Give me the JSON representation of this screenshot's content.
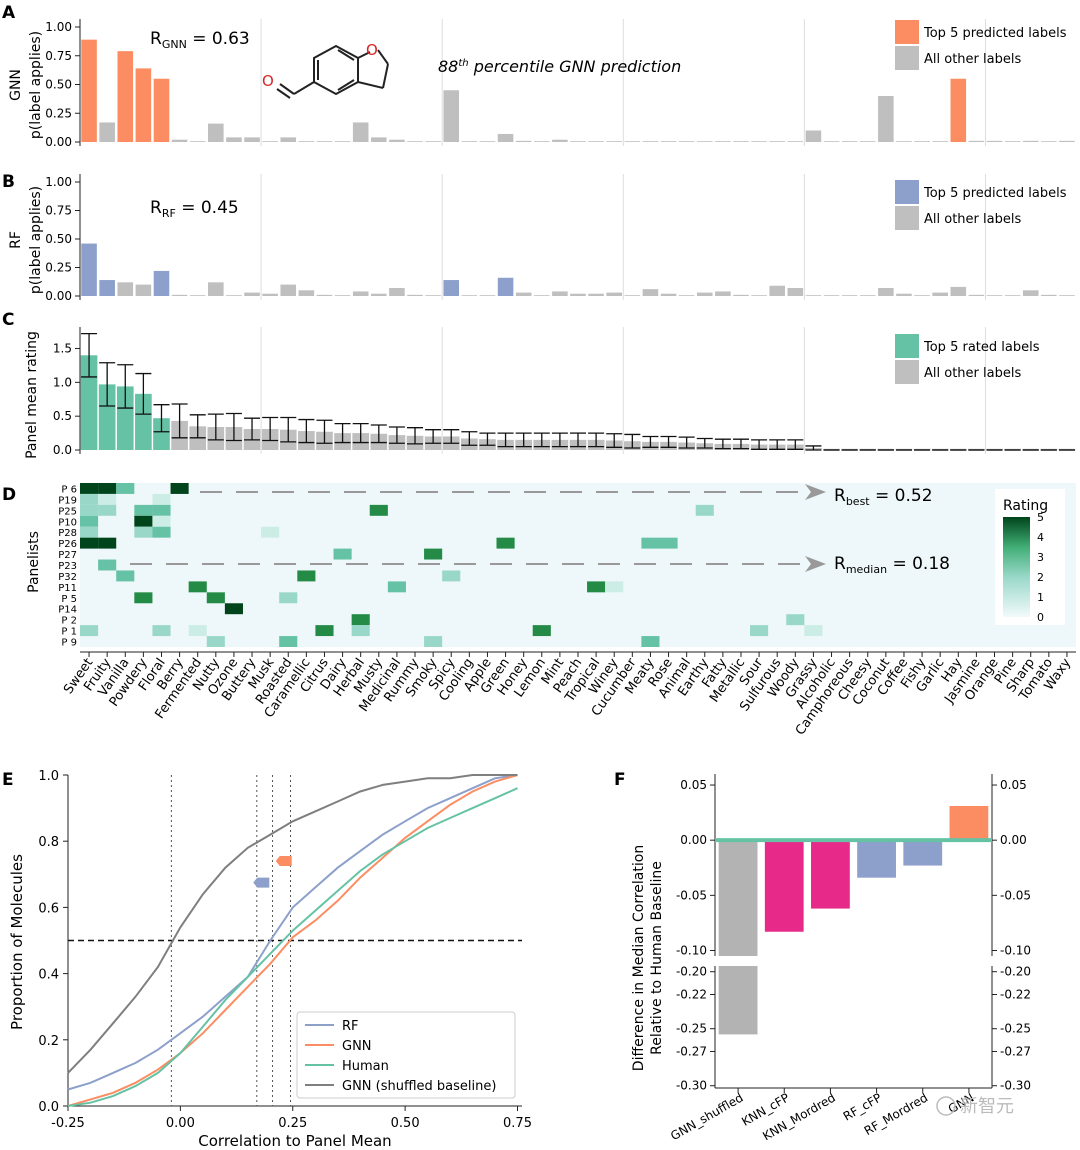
{
  "labels": [
    "Sweet",
    "Fruity",
    "Vanilla",
    "Powdery",
    "Floral",
    "Berry",
    "Fermented",
    "Nutty",
    "Ozone",
    "Buttery",
    "Musk",
    "Roasted",
    "Caramellic",
    "Citrus",
    "Dairy",
    "Herbal",
    "Musty",
    "Medicinal",
    "Rummy",
    "Smoky",
    "Spicy",
    "Cooling",
    "Apple",
    "Green",
    "Honey",
    "Lemon",
    "Mint",
    "Peach",
    "Tropical",
    "Winey",
    "Cucumber",
    "Meaty",
    "Rose",
    "Animal",
    "Earthy",
    "Fatty",
    "Metallic",
    "Sour",
    "Sulfurous",
    "Woody",
    "Grassy",
    "Alcoholic",
    "Camphoreous",
    "Cheesy",
    "Coconut",
    "Coffee",
    "Fishy",
    "Garlic",
    "Hay",
    "Jasmine",
    "Orange",
    "Pine",
    "Sharp",
    "Tomato",
    "Waxy"
  ],
  "panelA": {
    "letter": "A",
    "ylabel_top": "GNN",
    "ylabel": "p(label applies)",
    "yticks": [
      "0.00",
      "0.25",
      "0.50",
      "0.75",
      "1.00"
    ],
    "r_text_main": "R",
    "r_text_sub": "GNN",
    "r_text_val": " = 0.63",
    "percentile_num": "88",
    "percentile_sup": "th",
    "percentile_rest": " percentile GNN prediction",
    "legend": [
      "Top 5 predicted labels",
      "All other labels"
    ],
    "values": [
      0.89,
      0.17,
      0.79,
      0.64,
      0.55,
      0.02,
      0.0,
      0.16,
      0.04,
      0.04,
      0.0,
      0.04,
      0.0,
      0.0,
      0.0,
      0.17,
      0.04,
      0.02,
      0.0,
      0.0,
      0.45,
      0.0,
      0.0,
      0.07,
      0.01,
      0.0,
      0.02,
      0.0,
      0.0,
      0.0,
      0.0,
      0.0,
      0.0,
      0.0,
      0.0,
      0.0,
      0.0,
      0.0,
      0.0,
      0.0,
      0.1,
      0.0,
      0.0,
      0.0,
      0.4,
      0.0,
      0.0,
      0.0,
      0.55,
      0.01,
      0.01,
      0.0,
      0.01,
      0.0,
      0.01
    ],
    "top": [
      0,
      2,
      3,
      4,
      48
    ]
  },
  "panelB": {
    "letter": "B",
    "ylabel_top": "RF",
    "ylabel": "p(label applies)",
    "yticks": [
      "0.00",
      "0.25",
      "0.50",
      "0.75",
      "1.00"
    ],
    "r_text_main": "R",
    "r_text_sub": "RF",
    "r_text_val": " = 0.45",
    "legend": [
      "Top 5 predicted labels",
      "All other labels"
    ],
    "values": [
      0.46,
      0.14,
      0.12,
      0.1,
      0.22,
      0.01,
      0.0,
      0.12,
      0.0,
      0.03,
      0.02,
      0.1,
      0.05,
      0.01,
      0.0,
      0.04,
      0.02,
      0.07,
      0.01,
      0.0,
      0.14,
      0.0,
      0.0,
      0.16,
      0.03,
      0.0,
      0.04,
      0.02,
      0.02,
      0.03,
      0.0,
      0.06,
      0.02,
      0.0,
      0.03,
      0.04,
      0.01,
      0.0,
      0.09,
      0.07,
      0.0,
      0.0,
      0.0,
      0.0,
      0.07,
      0.02,
      0.0,
      0.03,
      0.08,
      0.01,
      0.0,
      0.0,
      0.05,
      0.01,
      0.0
    ],
    "top": [
      0,
      1,
      4,
      20,
      23
    ]
  },
  "panelC": {
    "letter": "C",
    "ylabel": "Panel mean rating",
    "yticks": [
      "0.0",
      "0.5",
      "1.0",
      "1.5"
    ],
    "legend": [
      "Top 5 rated labels",
      "All other labels"
    ],
    "values": [
      1.4,
      0.97,
      0.94,
      0.83,
      0.47,
      0.43,
      0.35,
      0.34,
      0.34,
      0.31,
      0.31,
      0.3,
      0.28,
      0.27,
      0.25,
      0.25,
      0.24,
      0.22,
      0.21,
      0.2,
      0.2,
      0.17,
      0.16,
      0.15,
      0.15,
      0.15,
      0.15,
      0.15,
      0.15,
      0.14,
      0.13,
      0.12,
      0.12,
      0.11,
      0.1,
      0.09,
      0.09,
      0.08,
      0.08,
      0.08,
      0.03,
      0.0,
      0.0,
      0.0,
      0.0,
      0.0,
      0.0,
      0.0,
      0.0,
      0.0,
      0.0,
      0.0,
      0.0,
      0.0,
      0.0
    ],
    "errors": [
      0.32,
      0.32,
      0.32,
      0.3,
      0.2,
      0.25,
      0.17,
      0.19,
      0.2,
      0.16,
      0.17,
      0.18,
      0.17,
      0.17,
      0.14,
      0.14,
      0.13,
      0.12,
      0.12,
      0.1,
      0.1,
      0.1,
      0.09,
      0.1,
      0.1,
      0.1,
      0.1,
      0.1,
      0.1,
      0.1,
      0.1,
      0.08,
      0.08,
      0.08,
      0.07,
      0.07,
      0.07,
      0.07,
      0.07,
      0.07,
      0.03,
      0.0,
      0.0,
      0.0,
      0.0,
      0.0,
      0.0,
      0.0,
      0.0,
      0.0,
      0.0,
      0.0,
      0.0,
      0.0,
      0.0
    ],
    "top": [
      0,
      1,
      2,
      3,
      4
    ]
  },
  "panelD": {
    "letter": "D",
    "ylabel": "Panelists",
    "panelists": [
      "P 6",
      "P19",
      "P25",
      "P10",
      "P28",
      "P26",
      "P27",
      "P23",
      "P32",
      "P11",
      "P 5",
      "P14",
      "P 2",
      "P 1",
      "P 9"
    ],
    "cells": [
      [
        [
          0,
          5
        ],
        [
          1,
          5
        ],
        [
          2,
          3
        ],
        [
          5,
          5
        ]
      ],
      [
        [
          0,
          2
        ],
        [
          1,
          1
        ],
        [
          4,
          1
        ]
      ],
      [
        [
          0,
          2
        ],
        [
          1,
          2
        ],
        [
          3,
          3
        ],
        [
          4,
          3
        ],
        [
          16,
          4
        ],
        [
          34,
          2
        ]
      ],
      [
        [
          0,
          3
        ],
        [
          3,
          5
        ],
        [
          4,
          1
        ]
      ],
      [
        [
          0,
          2
        ],
        [
          3,
          2
        ],
        [
          4,
          3
        ],
        [
          10,
          1
        ]
      ],
      [
        [
          0,
          5
        ],
        [
          1,
          5
        ],
        [
          23,
          4
        ],
        [
          31,
          3
        ],
        [
          32,
          3
        ]
      ],
      [
        [
          14,
          3
        ],
        [
          19,
          4
        ]
      ],
      [
        [
          1,
          3
        ]
      ],
      [
        [
          2,
          3
        ],
        [
          12,
          4
        ],
        [
          20,
          2
        ]
      ],
      [
        [
          6,
          4
        ],
        [
          17,
          3
        ],
        [
          28,
          4
        ],
        [
          29,
          1
        ]
      ],
      [
        [
          3,
          4
        ],
        [
          7,
          4
        ],
        [
          11,
          2
        ]
      ],
      [
        [
          8,
          5
        ]
      ],
      [
        [
          15,
          4
        ],
        [
          39,
          2
        ]
      ],
      [
        [
          0,
          2
        ],
        [
          4,
          2
        ],
        [
          6,
          1
        ],
        [
          13,
          4
        ],
        [
          15,
          2
        ],
        [
          25,
          4
        ],
        [
          37,
          2
        ],
        [
          40,
          1
        ]
      ],
      [
        [
          7,
          2
        ],
        [
          11,
          3
        ],
        [
          19,
          2
        ],
        [
          31,
          3
        ]
      ]
    ],
    "rbest_main": "R",
    "rbest_sub": "best",
    "rbest_val": " = 0.52",
    "rmedian_main": "R",
    "rmedian_sub": "median",
    "rmedian_val": " = 0.18",
    "colorbar_title": "Rating",
    "colorbar_ticks": [
      "0",
      "1",
      "2",
      "3",
      "4",
      "5"
    ]
  },
  "panelE": {
    "letter": "E",
    "xlabel": "Correlation to Panel Mean",
    "ylabel": "Proportion of Molecules",
    "xticks": [
      "-0.25",
      "0.00",
      "0.25",
      "0.50",
      "0.75"
    ],
    "yticks": [
      "0.0",
      "0.2",
      "0.4",
      "0.6",
      "0.8",
      "1.0"
    ],
    "legend": [
      "RF",
      "GNN",
      "Human",
      "GNN (shuffled baseline)"
    ],
    "series": [
      {
        "name": "RF",
        "color": "#8ca0cb",
        "x": [
          -0.25,
          -0.2,
          -0.15,
          -0.1,
          -0.05,
          0.0,
          0.05,
          0.1,
          0.15,
          0.2,
          0.25,
          0.3,
          0.35,
          0.4,
          0.45,
          0.5,
          0.55,
          0.6,
          0.65,
          0.7,
          0.75
        ],
        "y": [
          0.05,
          0.07,
          0.1,
          0.13,
          0.17,
          0.22,
          0.27,
          0.33,
          0.39,
          0.5,
          0.6,
          0.66,
          0.72,
          0.77,
          0.82,
          0.86,
          0.9,
          0.93,
          0.96,
          0.99,
          1.0
        ]
      },
      {
        "name": "GNN",
        "color": "#fc8d62",
        "x": [
          -0.25,
          -0.2,
          -0.15,
          -0.1,
          -0.05,
          0.0,
          0.05,
          0.1,
          0.15,
          0.2,
          0.25,
          0.3,
          0.35,
          0.4,
          0.45,
          0.5,
          0.55,
          0.6,
          0.65,
          0.7,
          0.75
        ],
        "y": [
          0.0,
          0.02,
          0.04,
          0.07,
          0.11,
          0.16,
          0.22,
          0.29,
          0.36,
          0.43,
          0.51,
          0.56,
          0.62,
          0.69,
          0.75,
          0.81,
          0.86,
          0.91,
          0.95,
          0.98,
          1.0
        ]
      },
      {
        "name": "Human",
        "color": "#66c2a5",
        "x": [
          -0.25,
          -0.2,
          -0.15,
          -0.1,
          -0.05,
          0.0,
          0.05,
          0.1,
          0.15,
          0.2,
          0.25,
          0.3,
          0.35,
          0.4,
          0.45,
          0.5,
          0.55,
          0.6,
          0.65,
          0.7,
          0.75
        ],
        "y": [
          0.0,
          0.01,
          0.03,
          0.06,
          0.1,
          0.16,
          0.24,
          0.32,
          0.39,
          0.46,
          0.53,
          0.59,
          0.65,
          0.71,
          0.76,
          0.8,
          0.84,
          0.87,
          0.9,
          0.93,
          0.96
        ]
      },
      {
        "name": "GNN (shuffled baseline)",
        "color": "#7f7f7f",
        "x": [
          -0.25,
          -0.2,
          -0.15,
          -0.1,
          -0.05,
          0.0,
          0.05,
          0.1,
          0.15,
          0.2,
          0.25,
          0.3,
          0.35,
          0.4,
          0.45,
          0.5,
          0.55,
          0.6,
          0.65,
          0.7,
          0.75
        ],
        "y": [
          0.1,
          0.17,
          0.25,
          0.33,
          0.42,
          0.54,
          0.64,
          0.72,
          0.78,
          0.82,
          0.86,
          0.89,
          0.92,
          0.95,
          0.97,
          0.98,
          0.99,
          0.99,
          1.0,
          1.0,
          1.0
        ]
      }
    ],
    "vlines": [
      -0.02,
      0.17,
      0.205,
      0.245
    ],
    "hline": 0.5,
    "markers": [
      {
        "x": 0.18,
        "y": 0.675,
        "color": "#8ca0cb"
      },
      {
        "x": 0.23,
        "y": 0.74,
        "color": "#fc8d62"
      }
    ]
  },
  "panelF": {
    "letter": "F",
    "ylabel_1": "Difference in Median Correlation",
    "ylabel_2": "Relative to Human Baseline",
    "categories": [
      "GNN_shuffled",
      "KNN_cFP",
      "KNN_Mordred",
      "RF_cFP",
      "RF_Mordred",
      "GNN"
    ],
    "values": [
      -0.255,
      -0.083,
      -0.062,
      -0.034,
      -0.023,
      0.031
    ],
    "colors": [
      "#b3b3b3",
      "#e7298a",
      "#e7298a",
      "#8ca0cb",
      "#8ca0cb",
      "#fc8d62"
    ],
    "yticks_top": [
      "0.05",
      "0.00",
      "-0.05",
      "-0.10"
    ],
    "yticks_bot": [
      "-0.20",
      "-0.22",
      "-0.25",
      "-0.27",
      "-0.30"
    ],
    "watermark": "新智元"
  }
}
